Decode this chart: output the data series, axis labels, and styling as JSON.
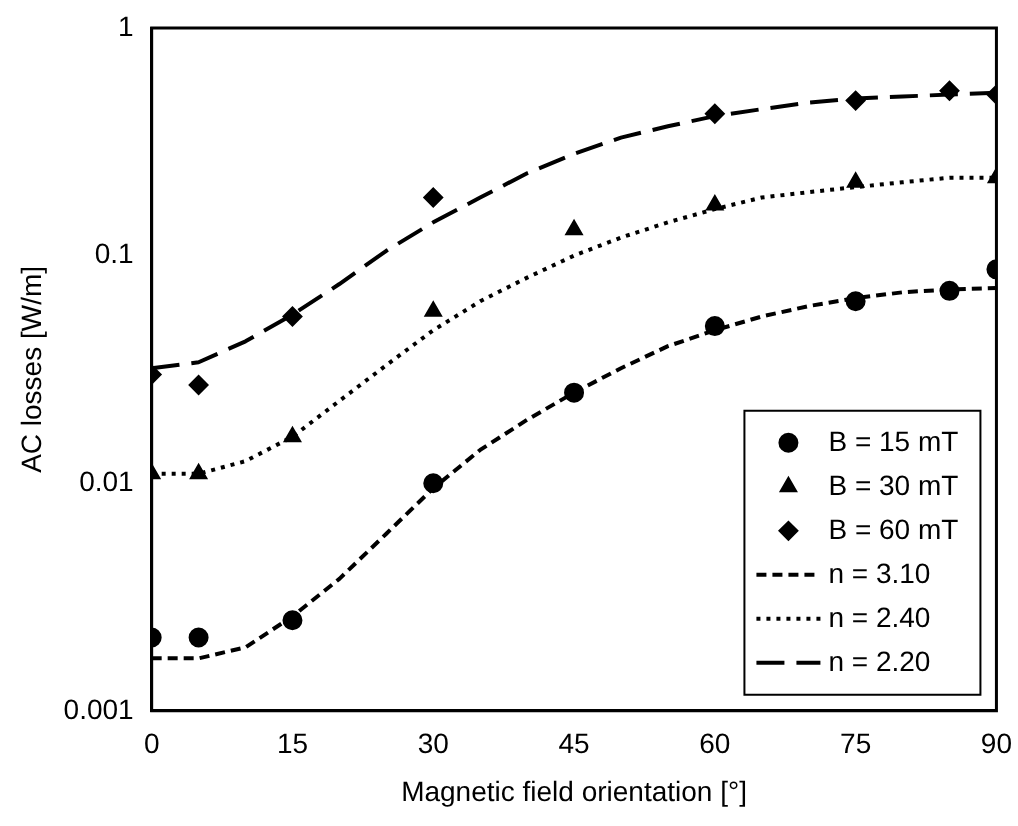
{
  "chart_data": {
    "type": "scatter",
    "xlabel": "Magnetic field orientation [°]",
    "ylabel": "AC losses [W/m]",
    "log": "y",
    "xlim": [
      0,
      90
    ],
    "xticks": [
      0,
      15,
      30,
      45,
      60,
      75,
      90
    ],
    "ylim": [
      0.001,
      1
    ],
    "yticks": [
      0.001,
      0.01,
      0.1,
      1
    ],
    "grid": false,
    "legend": "bottom right",
    "series": [
      {
        "name": "B = 15 mT",
        "type": "scatter",
        "marker": "circle",
        "color": "#000000",
        "x": [
          0,
          5,
          15,
          30,
          45,
          60,
          75,
          85,
          90
        ],
        "values": [
          0.0021,
          0.0021,
          0.0025,
          0.01,
          0.025,
          0.049,
          0.063,
          0.07,
          0.087
        ]
      },
      {
        "name": "B = 30 mT",
        "type": "scatter",
        "marker": "triangle",
        "color": "#000000",
        "x": [
          0,
          5,
          15,
          30,
          45,
          60,
          75,
          90
        ],
        "values": [
          0.011,
          0.011,
          0.016,
          0.057,
          0.13,
          0.167,
          0.21,
          0.22
        ]
      },
      {
        "name": "B = 60 mT",
        "type": "scatter",
        "marker": "diamond",
        "color": "#000000",
        "x": [
          0,
          5,
          15,
          30,
          60,
          75,
          85,
          90
        ],
        "values": [
          0.03,
          0.027,
          0.054,
          0.18,
          0.42,
          0.48,
          0.53,
          0.51
        ]
      },
      {
        "name": "n = 3.10",
        "type": "line",
        "line_style": "dashed",
        "color": "#000000",
        "x": [
          0,
          5,
          10,
          15,
          20,
          25,
          30,
          35,
          40,
          45,
          50,
          55,
          60,
          65,
          70,
          75,
          80,
          85,
          90
        ],
        "values": [
          0.0017,
          0.0017,
          0.0019,
          0.0026,
          0.0038,
          0.006,
          0.0095,
          0.014,
          0.019,
          0.025,
          0.032,
          0.04,
          0.047,
          0.054,
          0.06,
          0.065,
          0.069,
          0.071,
          0.072
        ]
      },
      {
        "name": "n = 2.40",
        "type": "line",
        "line_style": "dotted",
        "color": "#000000",
        "x": [
          0,
          5,
          10,
          15,
          20,
          25,
          30,
          35,
          40,
          45,
          50,
          55,
          60,
          65,
          70,
          75,
          80,
          85,
          90
        ],
        "values": [
          0.011,
          0.011,
          0.0125,
          0.016,
          0.023,
          0.033,
          0.047,
          0.063,
          0.08,
          0.1,
          0.12,
          0.14,
          0.16,
          0.18,
          0.19,
          0.2,
          0.21,
          0.22,
          0.22
        ]
      },
      {
        "name": "n = 2.20",
        "type": "line",
        "line_style": "longdash",
        "color": "#000000",
        "x": [
          0,
          5,
          10,
          15,
          20,
          25,
          30,
          35,
          40,
          45,
          50,
          55,
          60,
          65,
          70,
          75,
          80,
          85,
          90
        ],
        "values": [
          0.032,
          0.034,
          0.042,
          0.055,
          0.075,
          0.105,
          0.14,
          0.18,
          0.23,
          0.28,
          0.33,
          0.37,
          0.41,
          0.44,
          0.47,
          0.49,
          0.5,
          0.51,
          0.52
        ]
      }
    ]
  }
}
